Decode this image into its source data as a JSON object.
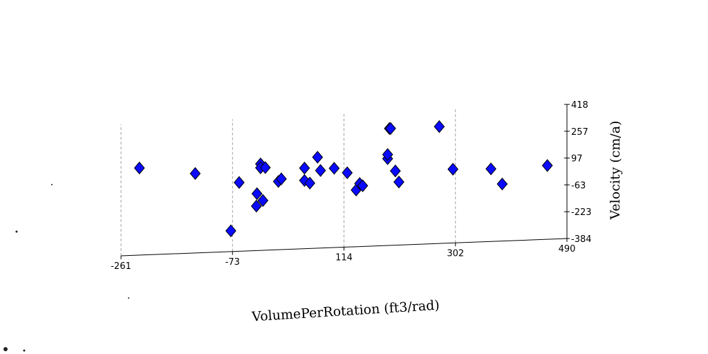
{
  "chart_data": {
    "type": "scatter",
    "title": "",
    "xlabel": "VolumePerRotation (ft3/rad)",
    "ylabel": "Velocity (cm/a)",
    "x_ticks": [
      "-261",
      "-73",
      "114",
      "302",
      "490"
    ],
    "y_ticks": [
      "418",
      "257",
      "97",
      "-63",
      "-223",
      "-384"
    ],
    "xlim": [
      -261,
      490
    ],
    "ylim": [
      -384,
      418
    ],
    "grid": true,
    "marker": "diamond",
    "colors": {
      "point_fill": "#0a0aff",
      "point_edge": "#000000"
    },
    "points": [
      {
        "x": -230,
        "y": 137
      },
      {
        "x": -136,
        "y": 91
      },
      {
        "x": -76,
        "y": -260
      },
      {
        "x": -62,
        "y": 27
      },
      {
        "x": -33,
        "y": -118
      },
      {
        "x": -32,
        "y": -44
      },
      {
        "x": -26,
        "y": 133
      },
      {
        "x": -26,
        "y": 110
      },
      {
        "x": -22,
        "y": -86
      },
      {
        "x": -18,
        "y": 110
      },
      {
        "x": 4,
        "y": 24
      },
      {
        "x": 9,
        "y": 39
      },
      {
        "x": 48,
        "y": 98
      },
      {
        "x": 48,
        "y": 24
      },
      {
        "x": 57,
        "y": 7
      },
      {
        "x": 70,
        "y": 160
      },
      {
        "x": 75,
        "y": 80
      },
      {
        "x": 98,
        "y": 90
      },
      {
        "x": 120,
        "y": 60
      },
      {
        "x": 135,
        "y": -45
      },
      {
        "x": 141,
        "y": -7
      },
      {
        "x": 146,
        "y": -21
      },
      {
        "x": 188,
        "y": 135
      },
      {
        "x": 188,
        "y": 160
      },
      {
        "x": 191,
        "y": 315
      },
      {
        "x": 193,
        "y": 315
      },
      {
        "x": 201,
        "y": 60
      },
      {
        "x": 207,
        "y": -7
      },
      {
        "x": 275,
        "y": 315
      },
      {
        "x": 298,
        "y": 57
      },
      {
        "x": 362,
        "y": 50
      },
      {
        "x": 381,
        "y": -43
      },
      {
        "x": 457,
        "y": 57
      }
    ]
  }
}
